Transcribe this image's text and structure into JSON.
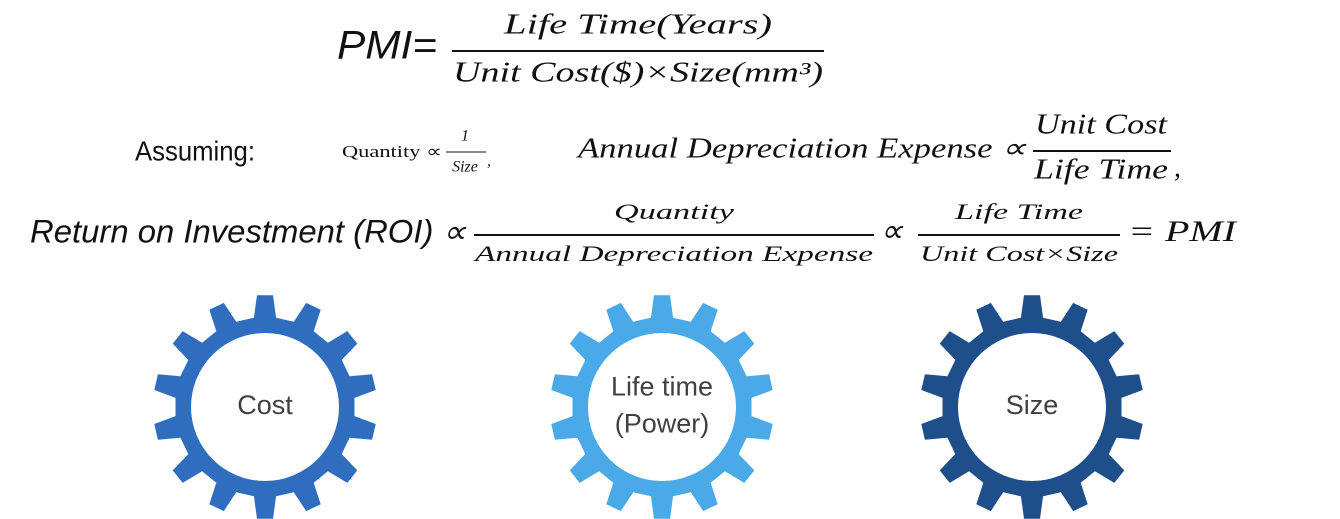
{
  "formula": {
    "lhs": "PMI=",
    "numerator": "Life Time(Years)",
    "denominator": "Unit Cost($)×Size(mm³)"
  },
  "assumptions": {
    "label": "Assuming:",
    "quantity": {
      "lhs": "Quantity ∝",
      "numerator": "1",
      "denominator": "Size",
      "suffix": ","
    },
    "depreciation": {
      "lhs": "Annual Depreciation Expense ∝",
      "numerator": "Unit Cost",
      "denominator": "Life Time",
      "suffix": ","
    }
  },
  "roi": {
    "lhs": "Return on Investment (ROI) ∝",
    "fraction1": {
      "numerator": "Quantity",
      "denominator": "Annual Depreciation Expense"
    },
    "middle": "∝",
    "fraction2": {
      "numerator": "Life Time",
      "denominator": "Unit Cost×Size"
    },
    "result": "= PMI"
  },
  "gears": [
    {
      "lines": [
        "Cost"
      ]
    },
    {
      "lines": [
        "Life time",
        "(Power)"
      ]
    },
    {
      "lines": [
        "Size"
      ]
    }
  ]
}
